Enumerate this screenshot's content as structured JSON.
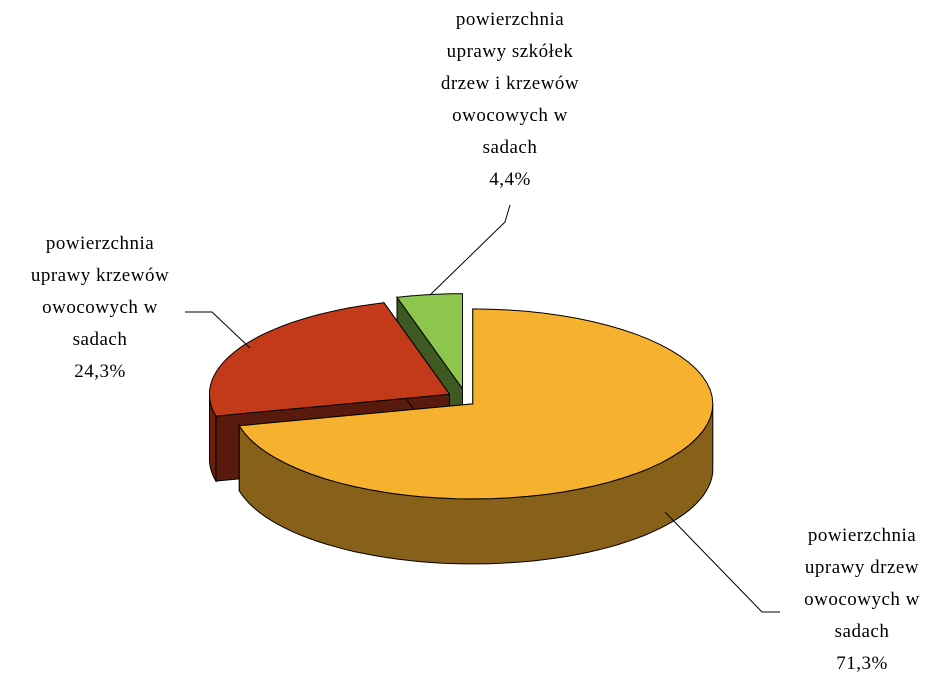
{
  "chart_data": {
    "type": "pie",
    "categories": [
      "powierzchnia uprawy drzew owocowych w sadach",
      "powierzchnia uprawy krzewów owocowych w sadach",
      "powierzchnia uprawy szkółek drzew i krzewów owocowych w sadach"
    ],
    "values": [
      71.3,
      24.3,
      4.4
    ],
    "value_labels": [
      "71,3%",
      "24,3%",
      "4,4%"
    ],
    "colors": [
      "#f6b12e",
      "#c23a1a",
      "#8dc64c"
    ]
  }
}
